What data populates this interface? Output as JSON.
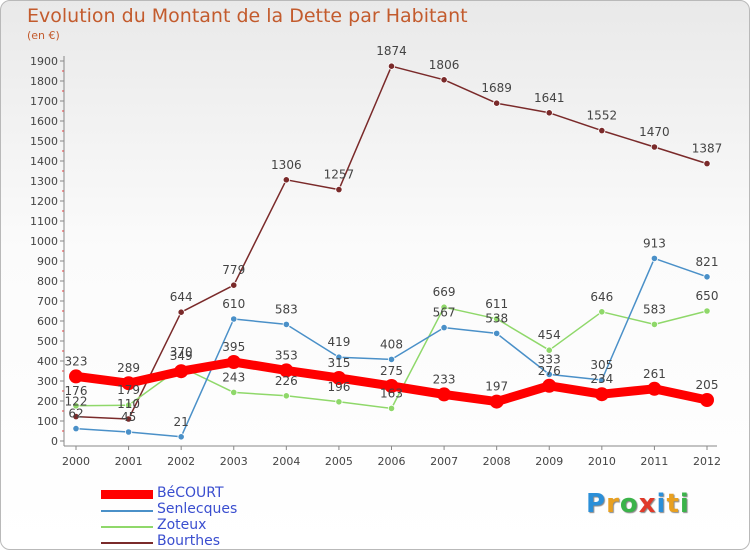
{
  "header": {
    "title": "Evolution du Montant de la Dette par Habitant",
    "subtitle": "(en €)"
  },
  "logo": {
    "text": "Proxiti",
    "colors": [
      "#2b8fd8",
      "#e8a020",
      "#3bb34a",
      "#e03a2a",
      "#2b8fd8",
      "#e8a020",
      "#3bb34a"
    ]
  },
  "chart_data": {
    "type": "line",
    "title": "Evolution du Montant de la Dette par Habitant",
    "subtitle": "(en €)",
    "xlabel": "",
    "ylabel": "",
    "x": [
      "2000",
      "2001",
      "2002",
      "2003",
      "2004",
      "2005",
      "2006",
      "2007",
      "2008",
      "2009",
      "2010",
      "2011",
      "2012"
    ],
    "ylim": [
      0,
      1900
    ],
    "yticks": [
      0,
      100,
      200,
      300,
      400,
      500,
      600,
      700,
      800,
      900,
      1000,
      1100,
      1200,
      1300,
      1400,
      1500,
      1600,
      1700,
      1800,
      1900
    ],
    "grid": false,
    "legend_position": "bottom-left",
    "series": [
      {
        "name": "BéCOURT",
        "color": "#ff0000",
        "values": [
          323,
          289,
          349,
          395,
          353,
          315,
          275,
          233,
          197,
          276,
          234,
          261,
          205
        ]
      },
      {
        "name": "Senlecques",
        "color": "#4a90c8",
        "values": [
          62,
          45,
          21,
          610,
          583,
          419,
          408,
          567,
          538,
          333,
          305,
          913,
          821
        ]
      },
      {
        "name": "Zoteux",
        "color": "#8fd86a",
        "values": [
          176,
          179,
          370,
          243,
          226,
          196,
          163,
          669,
          611,
          454,
          646,
          583,
          650
        ]
      },
      {
        "name": "Bourthes",
        "color": "#7a2a2a",
        "values": [
          122,
          110,
          644,
          779,
          1306,
          1257,
          1874,
          1806,
          1689,
          1641,
          1552,
          1470,
          1387
        ]
      }
    ]
  }
}
